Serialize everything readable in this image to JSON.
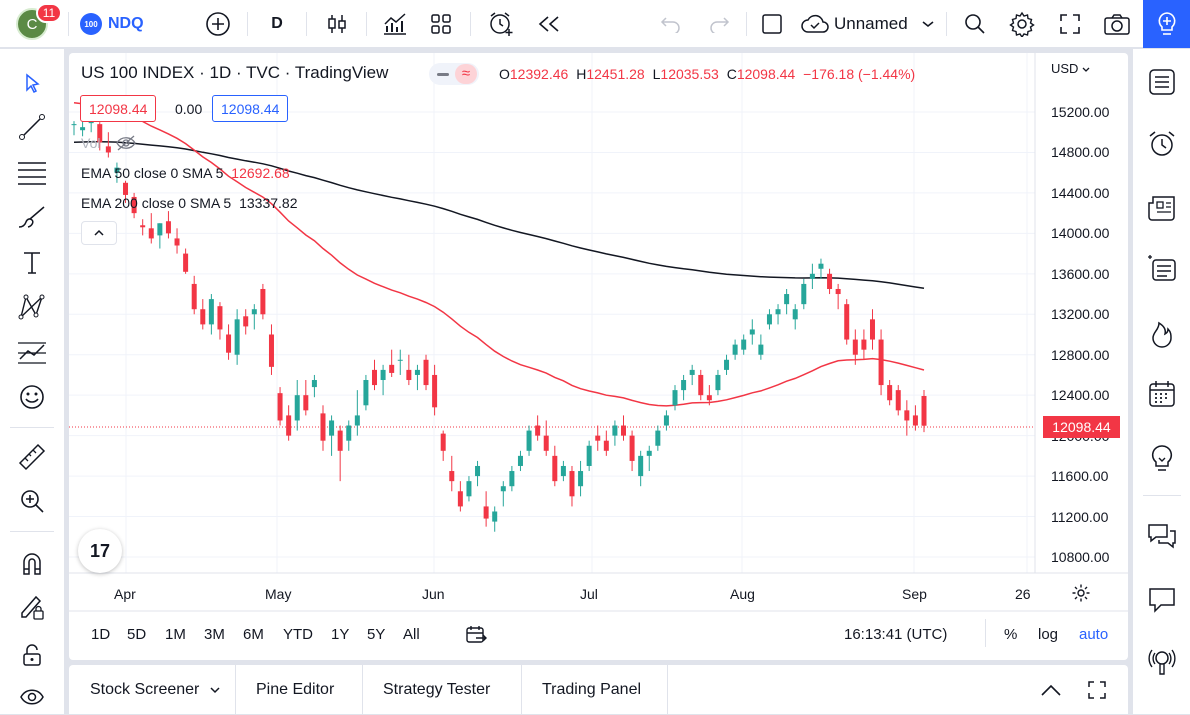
{
  "topbar": {
    "avatar_letter": "C",
    "notification_count": "11",
    "symbol_badge": "100",
    "symbol": "NDQ",
    "interval": "D",
    "layout_name": "Unnamed"
  },
  "legend": {
    "title": "US 100 INDEX · 1D · TVC · TradingView",
    "open_label": "O",
    "open": "12392.46",
    "high_label": "H",
    "high": "12451.28",
    "low_label": "L",
    "low": "12035.53",
    "close_label": "C",
    "close": "12098.44",
    "change": "−176.18 (−1.44%)",
    "bid": "12098.44",
    "spread": "0.00",
    "ask": "12098.44"
  },
  "indicators": {
    "volume_label": "Vol",
    "ema50_label": "EMA 50 close 0 SMA 5",
    "ema50_value": "12692.68",
    "ema200_label": "EMA 200 close 0 SMA 5",
    "ema200_value": "13337.82"
  },
  "price_axis": {
    "currency": "USD",
    "labels": [
      "15200.00",
      "14800.00",
      "14400.00",
      "14000.00",
      "13600.00",
      "13200.00",
      "12800.00",
      "12400.00",
      "12000.00",
      "11600.00",
      "11200.00",
      "10800.00"
    ],
    "current_price": "12098.44"
  },
  "time_axis": {
    "labels": [
      "Apr",
      "May",
      "Jun",
      "Jul",
      "Aug",
      "Sep",
      "26"
    ]
  },
  "range_bar": {
    "ranges": [
      "1D",
      "5D",
      "1M",
      "3M",
      "6M",
      "YTD",
      "1Y",
      "5Y",
      "All"
    ],
    "clock": "16:13:41 (UTC)",
    "percent": "%",
    "log": "log",
    "auto": "auto"
  },
  "bottom_tabs": [
    "Stock Screener",
    "Pine Editor",
    "Strategy Tester",
    "Trading Panel"
  ],
  "logo_text": "17",
  "colors": {
    "up": "#26a69a",
    "down": "#f23645",
    "accent": "#2962ff",
    "ema50": "#f23645",
    "ema200": "#131722"
  },
  "chart_data": {
    "type": "candlestick",
    "xlabel": "",
    "ylabel": "",
    "ylim": [
      10600,
      15500
    ],
    "categories_months": [
      "Apr",
      "May",
      "Jun",
      "Jul",
      "Aug",
      "Sep"
    ],
    "candles": [
      [
        15080,
        15110,
        14970,
        15080
      ],
      [
        15020,
        15180,
        14960,
        15050
      ],
      [
        15090,
        15180,
        15000,
        15150
      ],
      [
        15080,
        15100,
        14820,
        14900
      ],
      [
        14860,
        15000,
        14750,
        14800
      ],
      [
        14600,
        14700,
        14500,
        14650
      ],
      [
        14500,
        14520,
        14300,
        14380
      ],
      [
        14360,
        14400,
        14150,
        14200
      ],
      [
        14080,
        14140,
        13980,
        14060
      ],
      [
        14050,
        14200,
        13900,
        13950
      ],
      [
        13980,
        14100,
        13850,
        14100
      ],
      [
        14120,
        14220,
        13950,
        14000
      ],
      [
        13950,
        14050,
        13800,
        13880
      ],
      [
        13800,
        13850,
        13600,
        13620
      ],
      [
        13500,
        13580,
        13200,
        13250
      ],
      [
        13250,
        13350,
        13050,
        13100
      ],
      [
        13100,
        13400,
        13000,
        13350
      ],
      [
        13280,
        13320,
        12950,
        13050
      ],
      [
        13000,
        13100,
        12750,
        12820
      ],
      [
        12800,
        13250,
        12700,
        13150
      ],
      [
        13180,
        13250,
        13000,
        13080
      ],
      [
        13200,
        13300,
        13050,
        13250
      ],
      [
        13450,
        13500,
        13150,
        13200
      ],
      [
        13000,
        13100,
        12600,
        12680
      ],
      [
        12420,
        12480,
        12100,
        12150
      ],
      [
        12200,
        12300,
        11950,
        12000
      ],
      [
        12150,
        12550,
        12050,
        12400
      ],
      [
        12400,
        12550,
        12200,
        12250
      ],
      [
        12480,
        12600,
        12380,
        12550
      ],
      [
        12220,
        12300,
        11850,
        11950
      ],
      [
        12000,
        12200,
        11800,
        12150
      ],
      [
        12050,
        12100,
        11550,
        11850
      ],
      [
        11950,
        12150,
        11850,
        12100
      ],
      [
        12100,
        12450,
        12000,
        12200
      ],
      [
        12300,
        12600,
        12250,
        12550
      ],
      [
        12650,
        12750,
        12450,
        12500
      ],
      [
        12550,
        12700,
        12400,
        12650
      ],
      [
        12700,
        12850,
        12580,
        12620
      ],
      [
        12750,
        12850,
        12600,
        12750
      ],
      [
        12650,
        12800,
        12500,
        12550
      ],
      [
        12600,
        12700,
        12450,
        12650
      ],
      [
        12750,
        12800,
        12450,
        12500
      ],
      [
        12600,
        12700,
        12200,
        12280
      ],
      [
        12020,
        12050,
        11750,
        11850
      ],
      [
        11650,
        11800,
        11450,
        11550
      ],
      [
        11450,
        11550,
        11250,
        11300
      ],
      [
        11400,
        11600,
        11350,
        11550
      ],
      [
        11600,
        11750,
        11500,
        11700
      ],
      [
        11300,
        11450,
        11100,
        11180
      ],
      [
        11150,
        11300,
        11050,
        11250
      ],
      [
        11450,
        11550,
        11300,
        11500
      ],
      [
        11500,
        11700,
        11450,
        11650
      ],
      [
        11700,
        11850,
        11650,
        11800
      ],
      [
        11850,
        12100,
        11800,
        12050
      ],
      [
        12100,
        12200,
        11950,
        12000
      ],
      [
        12000,
        12150,
        11800,
        11850
      ],
      [
        11800,
        11900,
        11500,
        11550
      ],
      [
        11600,
        11750,
        11550,
        11700
      ],
      [
        11650,
        11700,
        11300,
        11400
      ],
      [
        11500,
        11750,
        11400,
        11650
      ],
      [
        11700,
        11950,
        11650,
        11900
      ],
      [
        12000,
        12100,
        11850,
        11950
      ],
      [
        11950,
        12050,
        11800,
        11850
      ],
      [
        12000,
        12150,
        11900,
        12100
      ],
      [
        12100,
        12200,
        11950,
        12000
      ],
      [
        12000,
        12050,
        11650,
        11750
      ],
      [
        11600,
        11850,
        11500,
        11800
      ],
      [
        11800,
        11900,
        11650,
        11850
      ],
      [
        11900,
        12100,
        11850,
        12050
      ],
      [
        12100,
        12250,
        12050,
        12200
      ],
      [
        12300,
        12500,
        12250,
        12450
      ],
      [
        12450,
        12600,
        12350,
        12550
      ],
      [
        12600,
        12700,
        12500,
        12650
      ],
      [
        12600,
        12650,
        12350,
        12400
      ],
      [
        12400,
        12500,
        12300,
        12350
      ],
      [
        12450,
        12650,
        12400,
        12600
      ],
      [
        12650,
        12800,
        12600,
        12750
      ],
      [
        12800,
        12950,
        12750,
        12900
      ],
      [
        12850,
        13000,
        12800,
        12950
      ],
      [
        13000,
        13150,
        12900,
        13050
      ],
      [
        12800,
        13000,
        12750,
        12900
      ],
      [
        13100,
        13250,
        13050,
        13200
      ],
      [
        13200,
        13300,
        13100,
        13250
      ],
      [
        13300,
        13450,
        13200,
        13400
      ],
      [
        13150,
        13300,
        13050,
        13250
      ],
      [
        13300,
        13550,
        13250,
        13500
      ],
      [
        13550,
        13700,
        13450,
        13600
      ],
      [
        13650,
        13750,
        13550,
        13700
      ],
      [
        13600,
        13650,
        13400,
        13450
      ],
      [
        13450,
        13500,
        13250,
        13400
      ],
      [
        13300,
        13350,
        12900,
        12950
      ],
      [
        12950,
        13050,
        12700,
        12800
      ],
      [
        12950,
        13050,
        12750,
        12850
      ],
      [
        13150,
        13250,
        12850,
        12950
      ],
      [
        12950,
        13050,
        12400,
        12500
      ],
      [
        12500,
        12550,
        12300,
        12350
      ],
      [
        12450,
        12500,
        12200,
        12250
      ],
      [
        12250,
        12350,
        12000,
        12150
      ],
      [
        12200,
        12300,
        12050,
        12100
      ],
      [
        12392,
        12451,
        12035,
        12098
      ]
    ]
  }
}
